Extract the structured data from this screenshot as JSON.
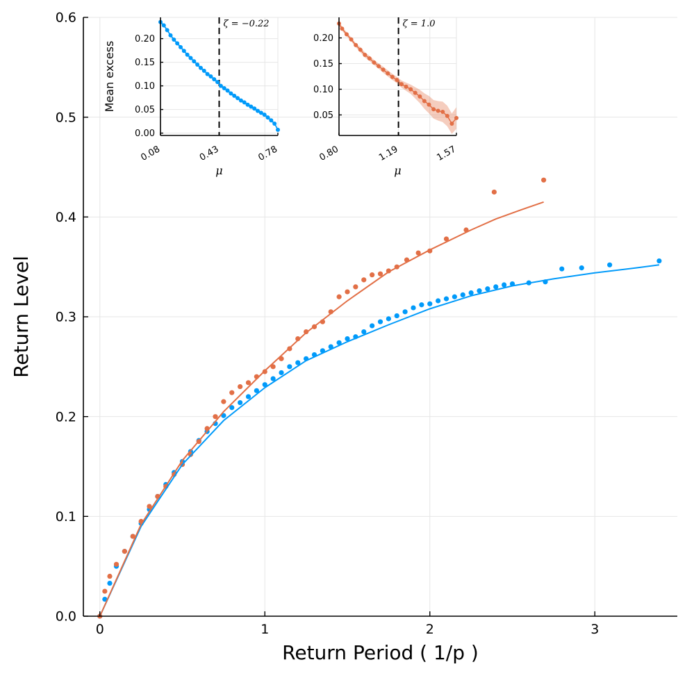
{
  "chart_data": [
    {
      "panel": "main",
      "type": "scatter",
      "xlabel": "Return Period ( 1/p )",
      "ylabel": "Return Level",
      "xlim": [
        -0.1,
        3.5
      ],
      "ylim": [
        0,
        0.6
      ],
      "xticks": [
        0,
        1,
        2,
        3
      ],
      "xtick_labels": [
        "0",
        "1",
        "2",
        "3"
      ],
      "yticks": [
        0,
        0.1,
        0.2,
        0.3,
        0.4,
        0.5,
        0.6
      ],
      "ytick_labels": [
        "0.0",
        "0.1",
        "0.2",
        "0.3",
        "0.4",
        "0.5",
        "0.6"
      ],
      "grid": true,
      "legend": "none",
      "series": [
        {
          "color": "#009AFA",
          "kind": "points",
          "x": [
            0.0,
            0.03,
            0.06,
            0.1,
            0.15,
            0.2,
            0.25,
            0.3,
            0.35,
            0.4,
            0.45,
            0.5,
            0.55,
            0.6,
            0.65,
            0.7,
            0.75,
            0.8,
            0.85,
            0.9,
            0.95,
            1.0,
            1.05,
            1.1,
            1.15,
            1.2,
            1.25,
            1.3,
            1.35,
            1.4,
            1.45,
            1.5,
            1.55,
            1.6,
            1.65,
            1.7,
            1.75,
            1.8,
            1.85,
            1.9,
            1.95,
            2.0,
            2.05,
            2.1,
            2.15,
            2.2,
            2.25,
            2.3,
            2.35,
            2.4,
            2.45,
            2.5,
            2.6,
            2.7,
            2.8,
            2.92,
            3.09,
            3.39
          ],
          "y": [
            0.0,
            0.017,
            0.033,
            0.05,
            0.065,
            0.08,
            0.093,
            0.107,
            0.12,
            0.132,
            0.144,
            0.155,
            0.165,
            0.176,
            0.185,
            0.193,
            0.201,
            0.209,
            0.214,
            0.22,
            0.226,
            0.232,
            0.238,
            0.244,
            0.25,
            0.254,
            0.258,
            0.262,
            0.266,
            0.27,
            0.274,
            0.278,
            0.28,
            0.285,
            0.291,
            0.295,
            0.298,
            0.301,
            0.305,
            0.309,
            0.312,
            0.313,
            0.316,
            0.318,
            0.32,
            0.322,
            0.324,
            0.326,
            0.328,
            0.33,
            0.332,
            0.333,
            0.334,
            0.335,
            0.348,
            0.349,
            0.352,
            0.356
          ]
        },
        {
          "color": "#E26F46",
          "kind": "points",
          "x": [
            0.0,
            0.03,
            0.06,
            0.1,
            0.15,
            0.2,
            0.25,
            0.3,
            0.35,
            0.4,
            0.45,
            0.5,
            0.55,
            0.6,
            0.65,
            0.7,
            0.75,
            0.8,
            0.85,
            0.9,
            0.95,
            1.0,
            1.05,
            1.1,
            1.15,
            1.2,
            1.25,
            1.3,
            1.35,
            1.4,
            1.45,
            1.5,
            1.55,
            1.6,
            1.65,
            1.7,
            1.75,
            1.8,
            1.86,
            1.93,
            2.0,
            2.1,
            2.22,
            2.39,
            2.69
          ],
          "y": [
            0.0,
            0.025,
            0.04,
            0.052,
            0.065,
            0.08,
            0.095,
            0.11,
            0.12,
            0.13,
            0.142,
            0.152,
            0.162,
            0.175,
            0.188,
            0.2,
            0.215,
            0.224,
            0.23,
            0.234,
            0.24,
            0.245,
            0.25,
            0.258,
            0.268,
            0.278,
            0.285,
            0.29,
            0.295,
            0.305,
            0.32,
            0.325,
            0.33,
            0.337,
            0.342,
            0.343,
            0.346,
            0.35,
            0.357,
            0.364,
            0.366,
            0.378,
            0.387,
            0.425,
            0.437
          ]
        },
        {
          "color": "#009AFA",
          "kind": "line",
          "x": [
            0.0,
            0.25,
            0.5,
            0.75,
            1.0,
            1.25,
            1.5,
            1.75,
            2.0,
            2.25,
            2.5,
            2.75,
            3.0,
            3.25,
            3.39
          ],
          "y": [
            0.0,
            0.09,
            0.152,
            0.196,
            0.229,
            0.256,
            0.275,
            0.292,
            0.308,
            0.321,
            0.331,
            0.338,
            0.344,
            0.349,
            0.352
          ]
        },
        {
          "color": "#E26F46",
          "kind": "line",
          "x": [
            0.0,
            0.25,
            0.5,
            0.75,
            1.0,
            1.25,
            1.5,
            1.75,
            2.0,
            2.25,
            2.4,
            2.55,
            2.69
          ],
          "y": [
            0.0,
            0.092,
            0.156,
            0.205,
            0.246,
            0.284,
            0.316,
            0.345,
            0.367,
            0.387,
            0.398,
            0.407,
            0.415
          ]
        }
      ]
    },
    {
      "panel": "inset-left",
      "type": "line",
      "xlabel": "μ",
      "ylabel": "Mean excess",
      "xlim": [
        0.08,
        0.78
      ],
      "ylim": [
        -0.005,
        0.245
      ],
      "xticks": [
        0.08,
        0.43,
        0.78
      ],
      "xtick_labels": [
        "0.08",
        "0.43",
        "0.78"
      ],
      "yticks": [
        0.0,
        0.05,
        0.1,
        0.15,
        0.2
      ],
      "ytick_labels": [
        "0.00",
        "0.05",
        "0.10",
        "0.15",
        "0.20"
      ],
      "threshold": 0.43,
      "annotation": "ζ = −0.22",
      "grid": true,
      "series": [
        {
          "color": "#009AFA",
          "x": [
            0.08,
            0.1,
            0.12,
            0.14,
            0.16,
            0.18,
            0.2,
            0.22,
            0.24,
            0.26,
            0.28,
            0.3,
            0.32,
            0.34,
            0.36,
            0.38,
            0.4,
            0.42,
            0.44,
            0.46,
            0.48,
            0.5,
            0.52,
            0.54,
            0.56,
            0.58,
            0.6,
            0.62,
            0.64,
            0.66,
            0.68,
            0.7,
            0.72,
            0.74,
            0.76,
            0.78
          ],
          "y": [
            0.235,
            0.228,
            0.218,
            0.207,
            0.198,
            0.19,
            0.182,
            0.174,
            0.166,
            0.159,
            0.152,
            0.145,
            0.138,
            0.132,
            0.125,
            0.12,
            0.114,
            0.108,
            0.1,
            0.095,
            0.09,
            0.084,
            0.079,
            0.074,
            0.069,
            0.065,
            0.06,
            0.056,
            0.052,
            0.047,
            0.043,
            0.039,
            0.033,
            0.027,
            0.02,
            0.007
          ],
          "band": 0.003
        }
      ]
    },
    {
      "panel": "inset-right",
      "type": "line",
      "xlabel": "μ",
      "ylabel": "",
      "xlim": [
        0.8,
        1.57
      ],
      "ylim": [
        0.01,
        0.24
      ],
      "xticks": [
        0.8,
        1.19,
        1.57
      ],
      "xtick_labels": [
        "0.80",
        "1.19",
        "1.57"
      ],
      "yticks": [
        0.05,
        0.1,
        0.15,
        0.2
      ],
      "ytick_labels": [
        "0.05",
        "0.10",
        "0.15",
        "0.20"
      ],
      "threshold": 1.19,
      "annotation": "ζ = 1.0",
      "grid": true,
      "series": [
        {
          "color": "#E26F46",
          "x": [
            0.8,
            0.82,
            0.85,
            0.88,
            0.91,
            0.94,
            0.97,
            1.0,
            1.03,
            1.06,
            1.09,
            1.12,
            1.15,
            1.18,
            1.21,
            1.24,
            1.27,
            1.3,
            1.33,
            1.36,
            1.39,
            1.42,
            1.45,
            1.48,
            1.51,
            1.54,
            1.57
          ],
          "y": [
            0.228,
            0.218,
            0.207,
            0.197,
            0.186,
            0.177,
            0.167,
            0.16,
            0.152,
            0.145,
            0.138,
            0.131,
            0.124,
            0.118,
            0.11,
            0.105,
            0.1,
            0.093,
            0.086,
            0.077,
            0.07,
            0.061,
            0.058,
            0.056,
            0.048,
            0.033,
            0.044
          ],
          "band": [
            0.004,
            0.004,
            0.004,
            0.004,
            0.004,
            0.005,
            0.005,
            0.005,
            0.005,
            0.005,
            0.006,
            0.006,
            0.006,
            0.006,
            0.007,
            0.008,
            0.009,
            0.011,
            0.013,
            0.015,
            0.017,
            0.018,
            0.019,
            0.02,
            0.02,
            0.02,
            0.021
          ]
        }
      ]
    }
  ]
}
